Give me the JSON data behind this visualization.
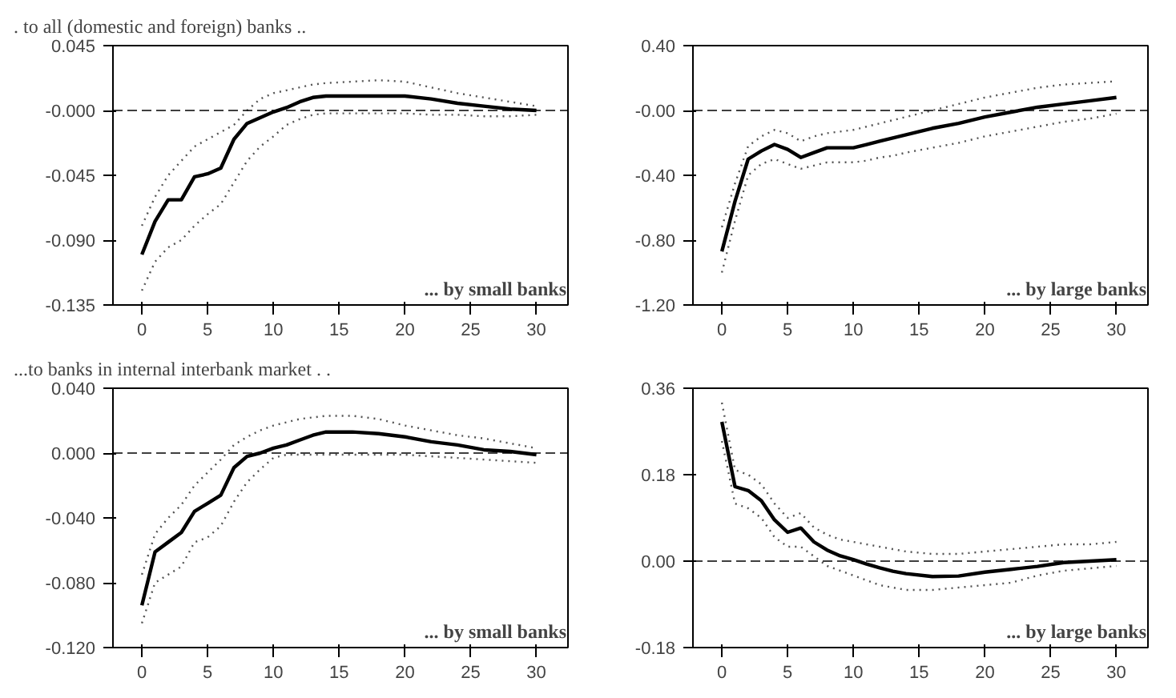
{
  "chart_data": [
    {
      "type": "line",
      "title": ". to all (domestic and foreign) banks ..",
      "annotations": [
        "... by small banks"
      ],
      "x": [
        0,
        1,
        2,
        3,
        4,
        5,
        6,
        7,
        8,
        9,
        10,
        11,
        12,
        13,
        14,
        16,
        18,
        20,
        22,
        24,
        26,
        28,
        30
      ],
      "series": [
        {
          "color": "#000000",
          "values": [
            -0.1,
            -0.077,
            -0.062,
            -0.062,
            -0.046,
            -0.044,
            -0.04,
            -0.02,
            -0.009,
            -0.005,
            -0.001,
            0.002,
            0.006,
            0.009,
            0.01,
            0.01,
            0.01,
            0.01,
            0.008,
            0.005,
            0.003,
            0.001,
            0.0
          ]
        },
        {
          "color": "#555555",
          "line_style": "dotted",
          "values": [
            -0.08,
            -0.06,
            -0.045,
            -0.035,
            -0.025,
            -0.02,
            -0.015,
            -0.01,
            0.0,
            0.008,
            0.012,
            0.014,
            0.016,
            0.018,
            0.019,
            0.02,
            0.021,
            0.02,
            0.016,
            0.012,
            0.009,
            0.006,
            0.003
          ]
        },
        {
          "color": "#555555",
          "line_style": "dotted",
          "values": [
            -0.125,
            -0.105,
            -0.095,
            -0.09,
            -0.08,
            -0.072,
            -0.065,
            -0.05,
            -0.035,
            -0.025,
            -0.018,
            -0.01,
            -0.006,
            -0.003,
            -0.002,
            -0.002,
            -0.002,
            -0.002,
            -0.003,
            -0.003,
            -0.004,
            -0.004,
            -0.003
          ]
        }
      ],
      "xlim": [
        -2.2,
        32.4
      ],
      "xticks": [
        0,
        5,
        10,
        15,
        20,
        25,
        30
      ],
      "ylim": [
        -0.135,
        0.045
      ],
      "yticks": [
        {
          "value": 0.045,
          "label": "0.045"
        },
        {
          "value": 0,
          "label": "-0.000"
        },
        {
          "value": -0.045,
          "label": "-0.045"
        },
        {
          "value": -0.09,
          "label": "-0.090"
        },
        {
          "value": -0.135,
          "label": "-0.135"
        }
      ],
      "ref_lines": [
        {
          "axis": "y",
          "value": 0,
          "line_style": "dashed",
          "color": "#000000"
        }
      ],
      "grid": false,
      "line_style": "solid",
      "marker": "none"
    },
    {
      "type": "line",
      "annotations": [
        "... by large banks"
      ],
      "x": [
        0,
        1,
        2,
        3,
        4,
        5,
        6,
        7,
        8,
        9,
        10,
        11,
        12,
        13,
        14,
        16,
        18,
        20,
        22,
        24,
        26,
        28,
        30
      ],
      "series": [
        {
          "color": "#000000",
          "values": [
            -0.87,
            -0.56,
            -0.3,
            -0.25,
            -0.21,
            -0.24,
            -0.29,
            -0.26,
            -0.23,
            -0.23,
            -0.23,
            -0.21,
            -0.19,
            -0.17,
            -0.15,
            -0.11,
            -0.08,
            -0.04,
            -0.01,
            0.02,
            0.04,
            0.06,
            0.08
          ]
        },
        {
          "color": "#555555",
          "line_style": "dotted",
          "values": [
            -0.72,
            -0.45,
            -0.22,
            -0.16,
            -0.12,
            -0.14,
            -0.19,
            -0.16,
            -0.14,
            -0.13,
            -0.12,
            -0.1,
            -0.08,
            -0.06,
            -0.04,
            0.0,
            0.04,
            0.08,
            0.11,
            0.14,
            0.16,
            0.17,
            0.18
          ]
        },
        {
          "color": "#555555",
          "line_style": "dotted",
          "values": [
            -1.0,
            -0.68,
            -0.4,
            -0.33,
            -0.3,
            -0.33,
            -0.36,
            -0.34,
            -0.32,
            -0.32,
            -0.32,
            -0.31,
            -0.29,
            -0.28,
            -0.26,
            -0.23,
            -0.2,
            -0.16,
            -0.13,
            -0.1,
            -0.07,
            -0.05,
            -0.02
          ]
        }
      ],
      "xlim": [
        -2.2,
        32.4
      ],
      "xticks": [
        0,
        5,
        10,
        15,
        20,
        25,
        30
      ],
      "ylim": [
        -1.2,
        0.4
      ],
      "yticks": [
        {
          "value": 0.4,
          "label": "0.40"
        },
        {
          "value": 0,
          "label": "-0.00"
        },
        {
          "value": -0.4,
          "label": "-0.40"
        },
        {
          "value": -0.8,
          "label": "-0.80"
        },
        {
          "value": -1.2,
          "label": "-1.20"
        }
      ],
      "ref_lines": [
        {
          "axis": "y",
          "value": 0,
          "line_style": "dashed",
          "color": "#000000"
        }
      ],
      "grid": false,
      "line_style": "solid",
      "marker": "none"
    },
    {
      "type": "line",
      "title": "...to banks in internal interbank market . .",
      "annotations": [
        "... by small banks"
      ],
      "x": [
        0,
        1,
        2,
        3,
        4,
        5,
        6,
        7,
        8,
        9,
        10,
        11,
        12,
        13,
        14,
        16,
        18,
        20,
        22,
        24,
        26,
        28,
        30
      ],
      "series": [
        {
          "color": "#000000",
          "values": [
            -0.094,
            -0.061,
            -0.055,
            -0.049,
            -0.036,
            -0.031,
            -0.026,
            -0.009,
            -0.002,
            0.0,
            0.003,
            0.005,
            0.008,
            0.011,
            0.013,
            0.013,
            0.012,
            0.01,
            0.007,
            0.005,
            0.002,
            0.001,
            -0.001
          ]
        },
        {
          "color": "#555555",
          "line_style": "dotted",
          "values": [
            -0.075,
            -0.05,
            -0.04,
            -0.032,
            -0.02,
            -0.012,
            -0.004,
            0.005,
            0.01,
            0.014,
            0.017,
            0.019,
            0.021,
            0.022,
            0.023,
            0.023,
            0.021,
            0.017,
            0.014,
            0.011,
            0.009,
            0.006,
            0.003
          ]
        },
        {
          "color": "#555555",
          "line_style": "dotted",
          "values": [
            -0.105,
            -0.08,
            -0.075,
            -0.07,
            -0.055,
            -0.052,
            -0.045,
            -0.03,
            -0.018,
            -0.01,
            -0.003,
            -0.001,
            -0.001,
            -0.001,
            -0.001,
            -0.001,
            -0.001,
            -0.001,
            -0.002,
            -0.003,
            -0.004,
            -0.005,
            -0.006
          ]
        }
      ],
      "xlim": [
        -2.2,
        32.4
      ],
      "xticks": [
        0,
        5,
        10,
        15,
        20,
        25,
        30
      ],
      "ylim": [
        -0.12,
        0.04
      ],
      "yticks": [
        {
          "value": 0.04,
          "label": "0.040"
        },
        {
          "value": 0,
          "label": "0.000"
        },
        {
          "value": -0.04,
          "label": "-0.040"
        },
        {
          "value": -0.08,
          "label": "-0.080"
        },
        {
          "value": -0.12,
          "label": "-0.120"
        }
      ],
      "ref_lines": [
        {
          "axis": "y",
          "value": 0,
          "line_style": "dashed",
          "color": "#000000"
        }
      ],
      "grid": false,
      "line_style": "solid",
      "marker": "none"
    },
    {
      "type": "line",
      "annotations": [
        "... by large banks"
      ],
      "x": [
        0,
        1,
        2,
        3,
        4,
        5,
        6,
        7,
        8,
        9,
        10,
        11,
        12,
        13,
        14,
        16,
        18,
        20,
        22,
        24,
        26,
        28,
        30
      ],
      "series": [
        {
          "color": "#000000",
          "values": [
            0.29,
            0.155,
            0.147,
            0.126,
            0.086,
            0.06,
            0.069,
            0.04,
            0.023,
            0.011,
            0.003,
            -0.006,
            -0.014,
            -0.021,
            -0.026,
            -0.032,
            -0.031,
            -0.023,
            -0.017,
            -0.011,
            -0.003,
            0.0,
            0.003
          ]
        },
        {
          "color": "#555555",
          "line_style": "dotted",
          "values": [
            0.33,
            0.19,
            0.18,
            0.16,
            0.12,
            0.09,
            0.1,
            0.07,
            0.055,
            0.045,
            0.04,
            0.035,
            0.03,
            0.025,
            0.02,
            0.015,
            0.015,
            0.02,
            0.025,
            0.03,
            0.035,
            0.035,
            0.04
          ]
        },
        {
          "color": "#555555",
          "line_style": "dotted",
          "values": [
            0.25,
            0.12,
            0.11,
            0.09,
            0.05,
            0.03,
            0.03,
            0.01,
            -0.01,
            -0.02,
            -0.03,
            -0.04,
            -0.05,
            -0.055,
            -0.06,
            -0.06,
            -0.055,
            -0.05,
            -0.045,
            -0.03,
            -0.02,
            -0.015,
            -0.01
          ]
        }
      ],
      "xlim": [
        -2.2,
        32.4
      ],
      "xticks": [
        0,
        5,
        10,
        15,
        20,
        25,
        30
      ],
      "ylim": [
        -0.18,
        0.36
      ],
      "yticks": [
        {
          "value": 0.36,
          "label": "0.36"
        },
        {
          "value": 0.18,
          "label": "0.18"
        },
        {
          "value": 0,
          "label": "0.00"
        },
        {
          "value": -0.18,
          "label": "-0.18"
        }
      ],
      "ref_lines": [
        {
          "axis": "y",
          "value": 0,
          "line_style": "dashed",
          "color": "#000000"
        }
      ],
      "grid": false,
      "line_style": "solid",
      "marker": "none"
    }
  ]
}
